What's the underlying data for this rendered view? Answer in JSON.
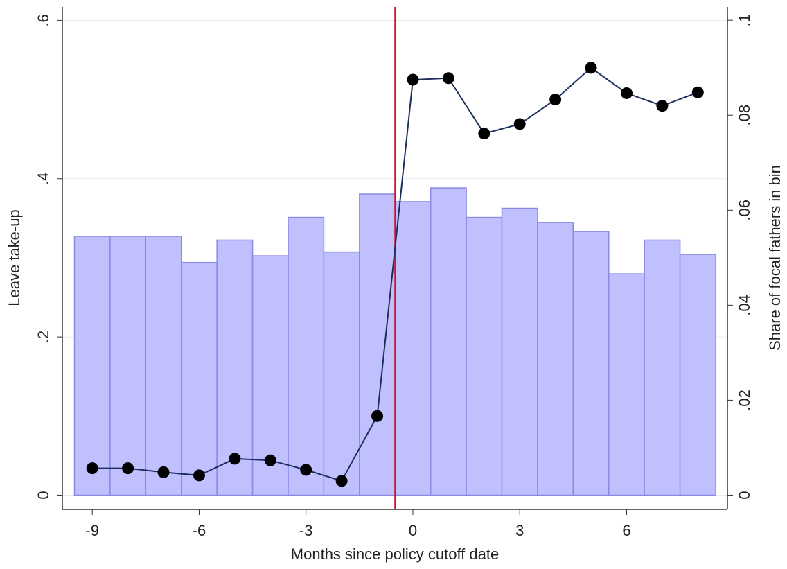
{
  "chart_data": {
    "type": "bar",
    "x_label": "Months since policy cutoff date",
    "y_label": "Leave take-up",
    "y2_label": "Share of focal fathers in bin",
    "x": [
      -9,
      -8,
      -7,
      -6,
      -5,
      -4,
      -3,
      -2,
      -1,
      0,
      1,
      2,
      3,
      4,
      5,
      6,
      7,
      8
    ],
    "xlim": [
      -9.84,
      8.83
    ],
    "xticks": [
      -9,
      -6,
      -3,
      0,
      3,
      6
    ],
    "ylim": [
      -0.018,
      0.617
    ],
    "yticks": [
      {
        "value": 0,
        "label": "0"
      },
      {
        "value": 0.2,
        "label": ".2"
      },
      {
        "value": 0.4,
        "label": ".4"
      },
      {
        "value": 0.6,
        "label": ".6"
      }
    ],
    "y2lim": [
      -0.003,
      0.1028
    ],
    "y2ticks": [
      {
        "value": 0,
        "label": "0"
      },
      {
        "value": 0.02,
        "label": ".02"
      },
      {
        "value": 0.04,
        "label": ".04"
      },
      {
        "value": 0.06,
        "label": ".06"
      },
      {
        "value": 0.08,
        "label": ".08"
      },
      {
        "value": 0.1,
        "label": ".1"
      }
    ],
    "grid": true,
    "vline": {
      "x": -0.5,
      "color": "#d0102a"
    },
    "series": [
      {
        "type": "bar",
        "axis": "y2",
        "color": "#c0c0ff",
        "edge_color": "#8a8ae6",
        "values": [
          0.0545,
          0.0545,
          0.0545,
          0.049,
          0.0537,
          0.0504,
          0.0585,
          0.0512,
          0.0634,
          0.0618,
          0.0647,
          0.0585,
          0.0604,
          0.0574,
          0.0555,
          0.0466,
          0.0537,
          0.0507
        ]
      },
      {
        "type": "line",
        "color": "#1c2e5c",
        "marker_color": "#000000",
        "values": [
          0.034,
          0.034,
          0.029,
          0.025,
          0.046,
          0.044,
          0.032,
          0.018,
          0.1,
          0.525,
          0.527,
          0.457,
          0.469,
          0.5,
          0.54,
          0.508,
          0.492,
          0.509
        ]
      }
    ]
  }
}
